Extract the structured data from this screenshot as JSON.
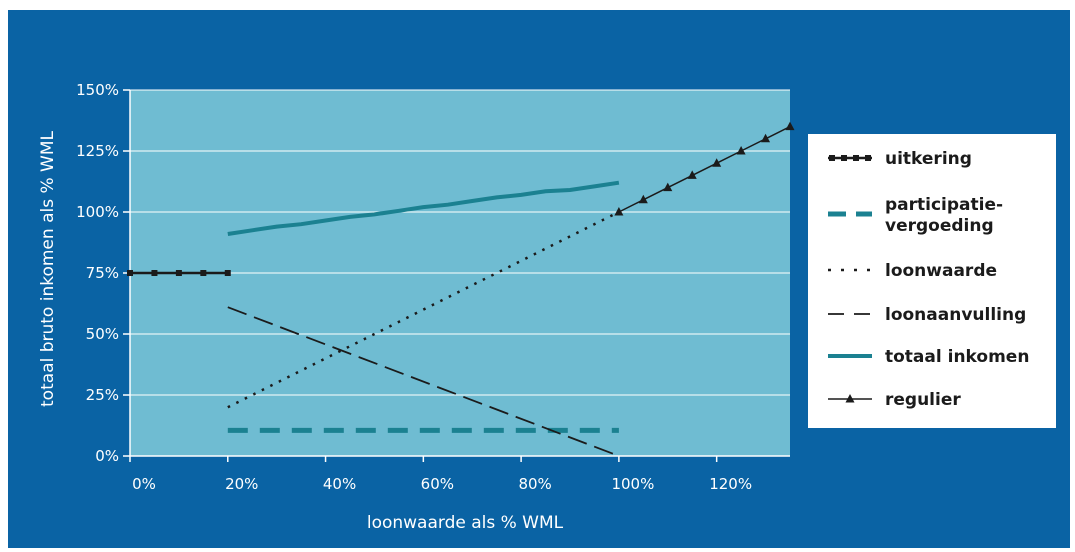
{
  "chart_data": {
    "type": "line",
    "xlabel": "loonwaarde als % WML",
    "ylabel": "totaal bruto inkomen als % WML",
    "xlim": [
      0,
      135
    ],
    "ylim": [
      0,
      150
    ],
    "x_ticks": [
      "0%",
      "20%",
      "40%",
      "60%",
      "80%",
      "100%",
      "120%"
    ],
    "x_tick_values": [
      0,
      20,
      40,
      60,
      80,
      100,
      120
    ],
    "y_ticks": [
      "0%",
      "25%",
      "50%",
      "75%",
      "100%",
      "125%",
      "150%"
    ],
    "y_tick_values": [
      0,
      25,
      50,
      75,
      100,
      125,
      150
    ],
    "grid": "horizontal",
    "legend_position": "right",
    "series": [
      {
        "name": "uitkering",
        "color": "#1b1b1b",
        "style": "dotted-square",
        "x": [
          0,
          5,
          10,
          15,
          20
        ],
        "y": [
          75,
          75,
          75,
          75,
          75
        ]
      },
      {
        "name": "participatie-\nvergoeding",
        "color": "#1b8191",
        "style": "dashed-thick",
        "x": [
          20,
          100
        ],
        "y": [
          10.5,
          10.5
        ]
      },
      {
        "name": "loonwaarde",
        "color": "#1b1b1b",
        "style": "dotted",
        "x": [
          20,
          100
        ],
        "y": [
          20,
          100
        ]
      },
      {
        "name": "loonaanvulling",
        "color": "#1b1b1b",
        "style": "dashed",
        "x": [
          20,
          100
        ],
        "y": [
          61,
          0
        ]
      },
      {
        "name": "totaal inkomen",
        "color": "#1b8191",
        "style": "solid-thick",
        "x": [
          20,
          25,
          30,
          35,
          40,
          45,
          50,
          55,
          60,
          65,
          70,
          75,
          80,
          85,
          90,
          95,
          100
        ],
        "y": [
          91,
          92.5,
          94,
          95,
          96.5,
          98,
          99,
          100.5,
          102,
          103,
          104.5,
          106,
          107,
          108.5,
          109,
          110.5,
          112
        ]
      },
      {
        "name": "regulier",
        "color": "#1b1b1b",
        "style": "triangle",
        "x": [
          100,
          105,
          110,
          115,
          120,
          125,
          130,
          135
        ],
        "y": [
          100,
          105,
          110,
          115,
          120,
          125,
          130,
          135
        ]
      }
    ]
  }
}
